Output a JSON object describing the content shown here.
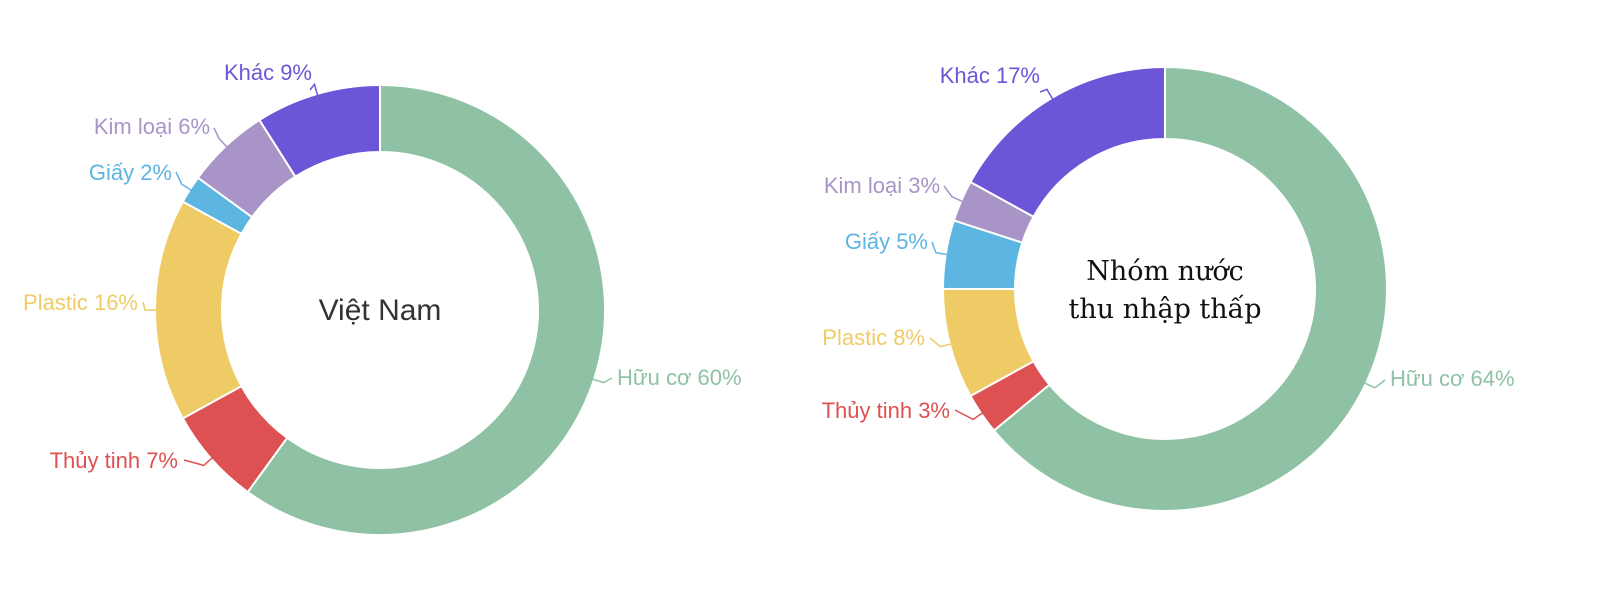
{
  "chart_data": [
    {
      "type": "pie",
      "center_title": [
        "Việt Nam"
      ],
      "slices": [
        {
          "name": "Hữu cơ",
          "value": 60,
          "label": "Hữu cơ 60%",
          "color": "#8fc2a5"
        },
        {
          "name": "Thủy tinh",
          "value": 7,
          "label": "Thủy tinh 7%",
          "color": "#dd5152"
        },
        {
          "name": "Plastic",
          "value": 16,
          "label": "Plastic 16%",
          "color": "#efcb66"
        },
        {
          "name": "Giấy",
          "value": 2,
          "label": "Giấy 2%",
          "color": "#5db5e2"
        },
        {
          "name": "Kim loại",
          "value": 6,
          "label": "Kim loại 6%",
          "color": "#a994c8"
        },
        {
          "name": "Khác",
          "value": 9,
          "label": "Khác 9%",
          "color": "#6d55d8"
        }
      ]
    },
    {
      "type": "pie",
      "center_title": [
        "Nhóm nước",
        "thu nhập thấp"
      ],
      "slices": [
        {
          "name": "Hữu cơ",
          "value": 64,
          "label": "Hữu cơ 64%",
          "color": "#8fc2a5"
        },
        {
          "name": "Thủy tinh",
          "value": 3,
          "label": "Thủy tinh 3%",
          "color": "#dd5152"
        },
        {
          "name": "Plastic",
          "value": 8,
          "label": "Plastic 8%",
          "color": "#efcb66"
        },
        {
          "name": "Giấy",
          "value": 5,
          "label": "Giấy 5%",
          "color": "#5db5e2"
        },
        {
          "name": "Kim loại",
          "value": 3,
          "label": "Kim loại 3%",
          "color": "#a994c8"
        },
        {
          "name": "Khác",
          "value": 17,
          "label": "Khác 17%",
          "color": "#6d55d8"
        }
      ]
    }
  ]
}
